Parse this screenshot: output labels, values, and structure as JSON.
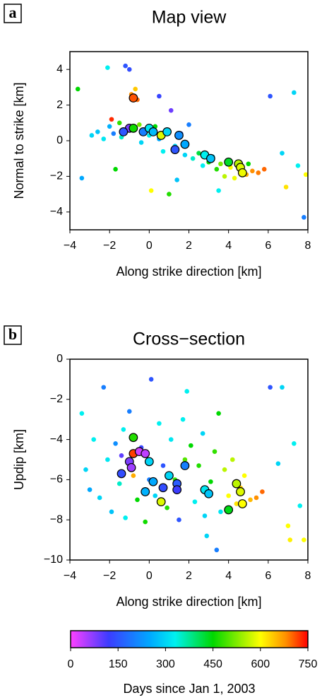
{
  "chart_data": [
    {
      "type": "scatter",
      "panel_label": "a",
      "title": "Map view",
      "x_label": "Along strike direction [km]",
      "y_label": "Normal to strike [km]",
      "xlim": [
        -4,
        8
      ],
      "ylim": [
        -5,
        5
      ],
      "xticks": [
        {
          "value": -4,
          "label": "−4"
        },
        {
          "value": -2,
          "label": "−2"
        },
        0,
        2,
        4,
        6,
        8
      ],
      "yticks": [
        {
          "value": -4,
          "label": "−4"
        },
        {
          "value": -2,
          "label": "−2"
        },
        0,
        2,
        4
      ],
      "points": {
        "x": [
          -3.6,
          -3.4,
          -2.9,
          -2.6,
          -2.3,
          -2.1,
          -2.0,
          -1.8,
          -1.7,
          -1.5,
          -1.4,
          -1.2,
          -1.0,
          -0.9,
          -0.7,
          -0.6,
          -0.5,
          -0.4,
          -0.2,
          0.0,
          0.1,
          0.3,
          0.5,
          0.7,
          0.9,
          1.0,
          1.1,
          1.3,
          1.6,
          1.8,
          2.0,
          2.2,
          2.5,
          2.7,
          3.0,
          3.2,
          3.4,
          3.6,
          3.8,
          4.1,
          4.3,
          4.6,
          4.9,
          5.2,
          5.5,
          5.8,
          6.1,
          6.7,
          6.9,
          7.3,
          7.5,
          7.8,
          7.9,
          -1.9,
          0.5,
          3.5,
          1.4,
          5.0
        ],
        "y": [
          2.9,
          -2.1,
          0.3,
          0.5,
          0.1,
          4.1,
          0.8,
          0.4,
          -1.6,
          1.0,
          0.2,
          4.2,
          4.0,
          2.6,
          2.9,
          2.3,
          0.9,
          -0.1,
          0.6,
          0.3,
          -2.8,
          0.8,
          0.1,
          -0.6,
          0.5,
          -3.0,
          1.7,
          -0.3,
          0.4,
          -0.8,
          0.9,
          -1.0,
          -0.7,
          -1.4,
          -1.2,
          -0.9,
          -1.6,
          -1.3,
          -2.0,
          -1.5,
          -2.1,
          -1.6,
          -1.9,
          -1.7,
          -1.8,
          -1.6,
          2.5,
          -0.7,
          -2.6,
          2.7,
          -1.4,
          -4.3,
          -1.9,
          1.2,
          2.5,
          -2.8,
          -2.2,
          -1.3
        ],
        "c": [
          450,
          250,
          300,
          280,
          320,
          330,
          260,
          200,
          450,
          480,
          350,
          150,
          140,
          680,
          640,
          700,
          520,
          300,
          200,
          330,
          600,
          450,
          250,
          330,
          180,
          470,
          90,
          300,
          160,
          300,
          200,
          350,
          420,
          330,
          450,
          300,
          470,
          520,
          560,
          600,
          590,
          630,
          660,
          680,
          690,
          700,
          150,
          300,
          620,
          300,
          330,
          200,
          600,
          730,
          130,
          330,
          280,
          450
        ]
      },
      "highlight": {
        "x": [
          -0.8,
          -1.0,
          -0.8,
          -1.3,
          -0.3,
          0.0,
          0.2,
          0.6,
          0.9,
          1.3,
          1.5,
          1.8,
          2.8,
          3.1,
          4.0,
          4.5,
          4.6,
          4.7
        ],
        "y": [
          2.4,
          0.7,
          0.7,
          0.5,
          0.5,
          0.7,
          0.5,
          0.3,
          0.5,
          -0.5,
          0.3,
          -0.2,
          -0.8,
          -1.0,
          -1.2,
          -1.3,
          -1.5,
          -1.8
        ],
        "c": [
          710,
          80,
          460,
          150,
          200,
          320,
          270,
          580,
          300,
          150,
          220,
          250,
          330,
          280,
          430,
          560,
          580,
          590
        ]
      }
    },
    {
      "type": "scatter",
      "panel_label": "b",
      "title": "Cross−section",
      "x_label": "Along strike direction [km]",
      "y_label": "Updip [km]",
      "xlim": [
        -4,
        8
      ],
      "ylim": [
        -10,
        0
      ],
      "xticks": [
        {
          "value": -4,
          "label": "−4"
        },
        {
          "value": -2,
          "label": "−2"
        },
        0,
        2,
        4,
        6,
        8
      ],
      "yticks": [
        {
          "value": -10,
          "label": "−10"
        },
        {
          "value": -8,
          "label": "−8"
        },
        {
          "value": -6,
          "label": "−6"
        },
        {
          "value": -4,
          "label": "−4"
        },
        {
          "value": -2,
          "label": "−2"
        },
        0
      ],
      "points": {
        "x": [
          -3.4,
          -3.2,
          -3.0,
          -2.8,
          -2.5,
          -2.3,
          -2.1,
          -1.9,
          -1.7,
          -1.5,
          -1.3,
          -1.2,
          -1.0,
          -0.8,
          -0.6,
          -0.4,
          -0.2,
          0.1,
          0.3,
          0.5,
          0.7,
          0.9,
          1.1,
          1.3,
          1.5,
          1.7,
          1.8,
          1.9,
          2.1,
          2.3,
          2.5,
          2.7,
          2.9,
          3.1,
          3.3,
          3.5,
          3.6,
          3.8,
          4.0,
          4.2,
          4.4,
          4.6,
          4.8,
          5.1,
          5.4,
          5.7,
          6.1,
          6.5,
          6.7,
          7.0,
          7.3,
          7.6,
          7.8,
          7.1,
          3.4,
          0.0,
          -1.4,
          2.8
        ],
        "y": [
          -2.7,
          -5.5,
          -6.5,
          -4.0,
          -6.9,
          -1.4,
          -5.0,
          -7.6,
          -4.2,
          -6.2,
          -3.5,
          -7.9,
          -2.6,
          -5.8,
          -7.0,
          -4.4,
          -8.1,
          -1.0,
          -6.8,
          -3.2,
          -5.3,
          -7.4,
          -4.0,
          -6.0,
          -8.0,
          -3.0,
          -5.0,
          -1.6,
          -4.3,
          -7.1,
          -5.3,
          -3.7,
          -8.8,
          -6.1,
          -4.6,
          -2.7,
          -7.6,
          -5.5,
          -6.8,
          -5.0,
          -7.2,
          -6.4,
          -5.8,
          -7.0,
          -6.9,
          -6.6,
          -1.4,
          -5.2,
          -1.4,
          -8.3,
          -4.2,
          -7.3,
          -9.0,
          -9.0,
          -9.5,
          -6.0,
          -4.8,
          -7.8
        ],
        "c": [
          330,
          300,
          250,
          330,
          300,
          200,
          320,
          280,
          220,
          350,
          330,
          330,
          200,
          660,
          450,
          130,
          460,
          150,
          300,
          330,
          150,
          470,
          320,
          480,
          150,
          330,
          500,
          330,
          450,
          330,
          470,
          300,
          300,
          450,
          480,
          450,
          320,
          560,
          600,
          560,
          620,
          640,
          600,
          650,
          680,
          700,
          150,
          300,
          300,
          600,
          330,
          330,
          600,
          610,
          200,
          200,
          100,
          300
        ]
      },
      "highlight": {
        "x": [
          -0.8,
          -0.8,
          -1.0,
          -1.4,
          -0.9,
          -0.5,
          -0.2,
          -0.2,
          0.0,
          0.2,
          0.6,
          0.7,
          1.0,
          1.4,
          1.4,
          1.8,
          2.8,
          3.0,
          4.0,
          4.4,
          4.6,
          4.7
        ],
        "y": [
          -4.7,
          -3.9,
          -5.1,
          -5.7,
          -5.4,
          -4.6,
          -4.7,
          -6.6,
          -5.1,
          -6.1,
          -7.1,
          -6.4,
          -5.8,
          -6.2,
          -6.5,
          -5.3,
          -6.5,
          -6.7,
          -7.5,
          -6.2,
          -6.6,
          -7.2
        ],
        "c": [
          720,
          470,
          80,
          140,
          60,
          30,
          40,
          260,
          300,
          250,
          580,
          140,
          300,
          160,
          120,
          200,
          320,
          280,
          440,
          560,
          580,
          600
        ]
      }
    },
    {
      "type": "colorbar",
      "label": "Days since Jan 1, 2003",
      "lim": [
        0,
        750
      ],
      "ticks": [
        0,
        150,
        300,
        450,
        600,
        750
      ],
      "colormap": [
        {
          "value": 0,
          "color": "#ff40ff"
        },
        {
          "value": 120,
          "color": "#3c3cff"
        },
        {
          "value": 250,
          "color": "#00a8ff"
        },
        {
          "value": 330,
          "color": "#00f0f0"
        },
        {
          "value": 450,
          "color": "#00d800"
        },
        {
          "value": 600,
          "color": "#ffff00"
        },
        {
          "value": 680,
          "color": "#ff9000"
        },
        {
          "value": 750,
          "color": "#ff0000"
        }
      ]
    }
  ]
}
